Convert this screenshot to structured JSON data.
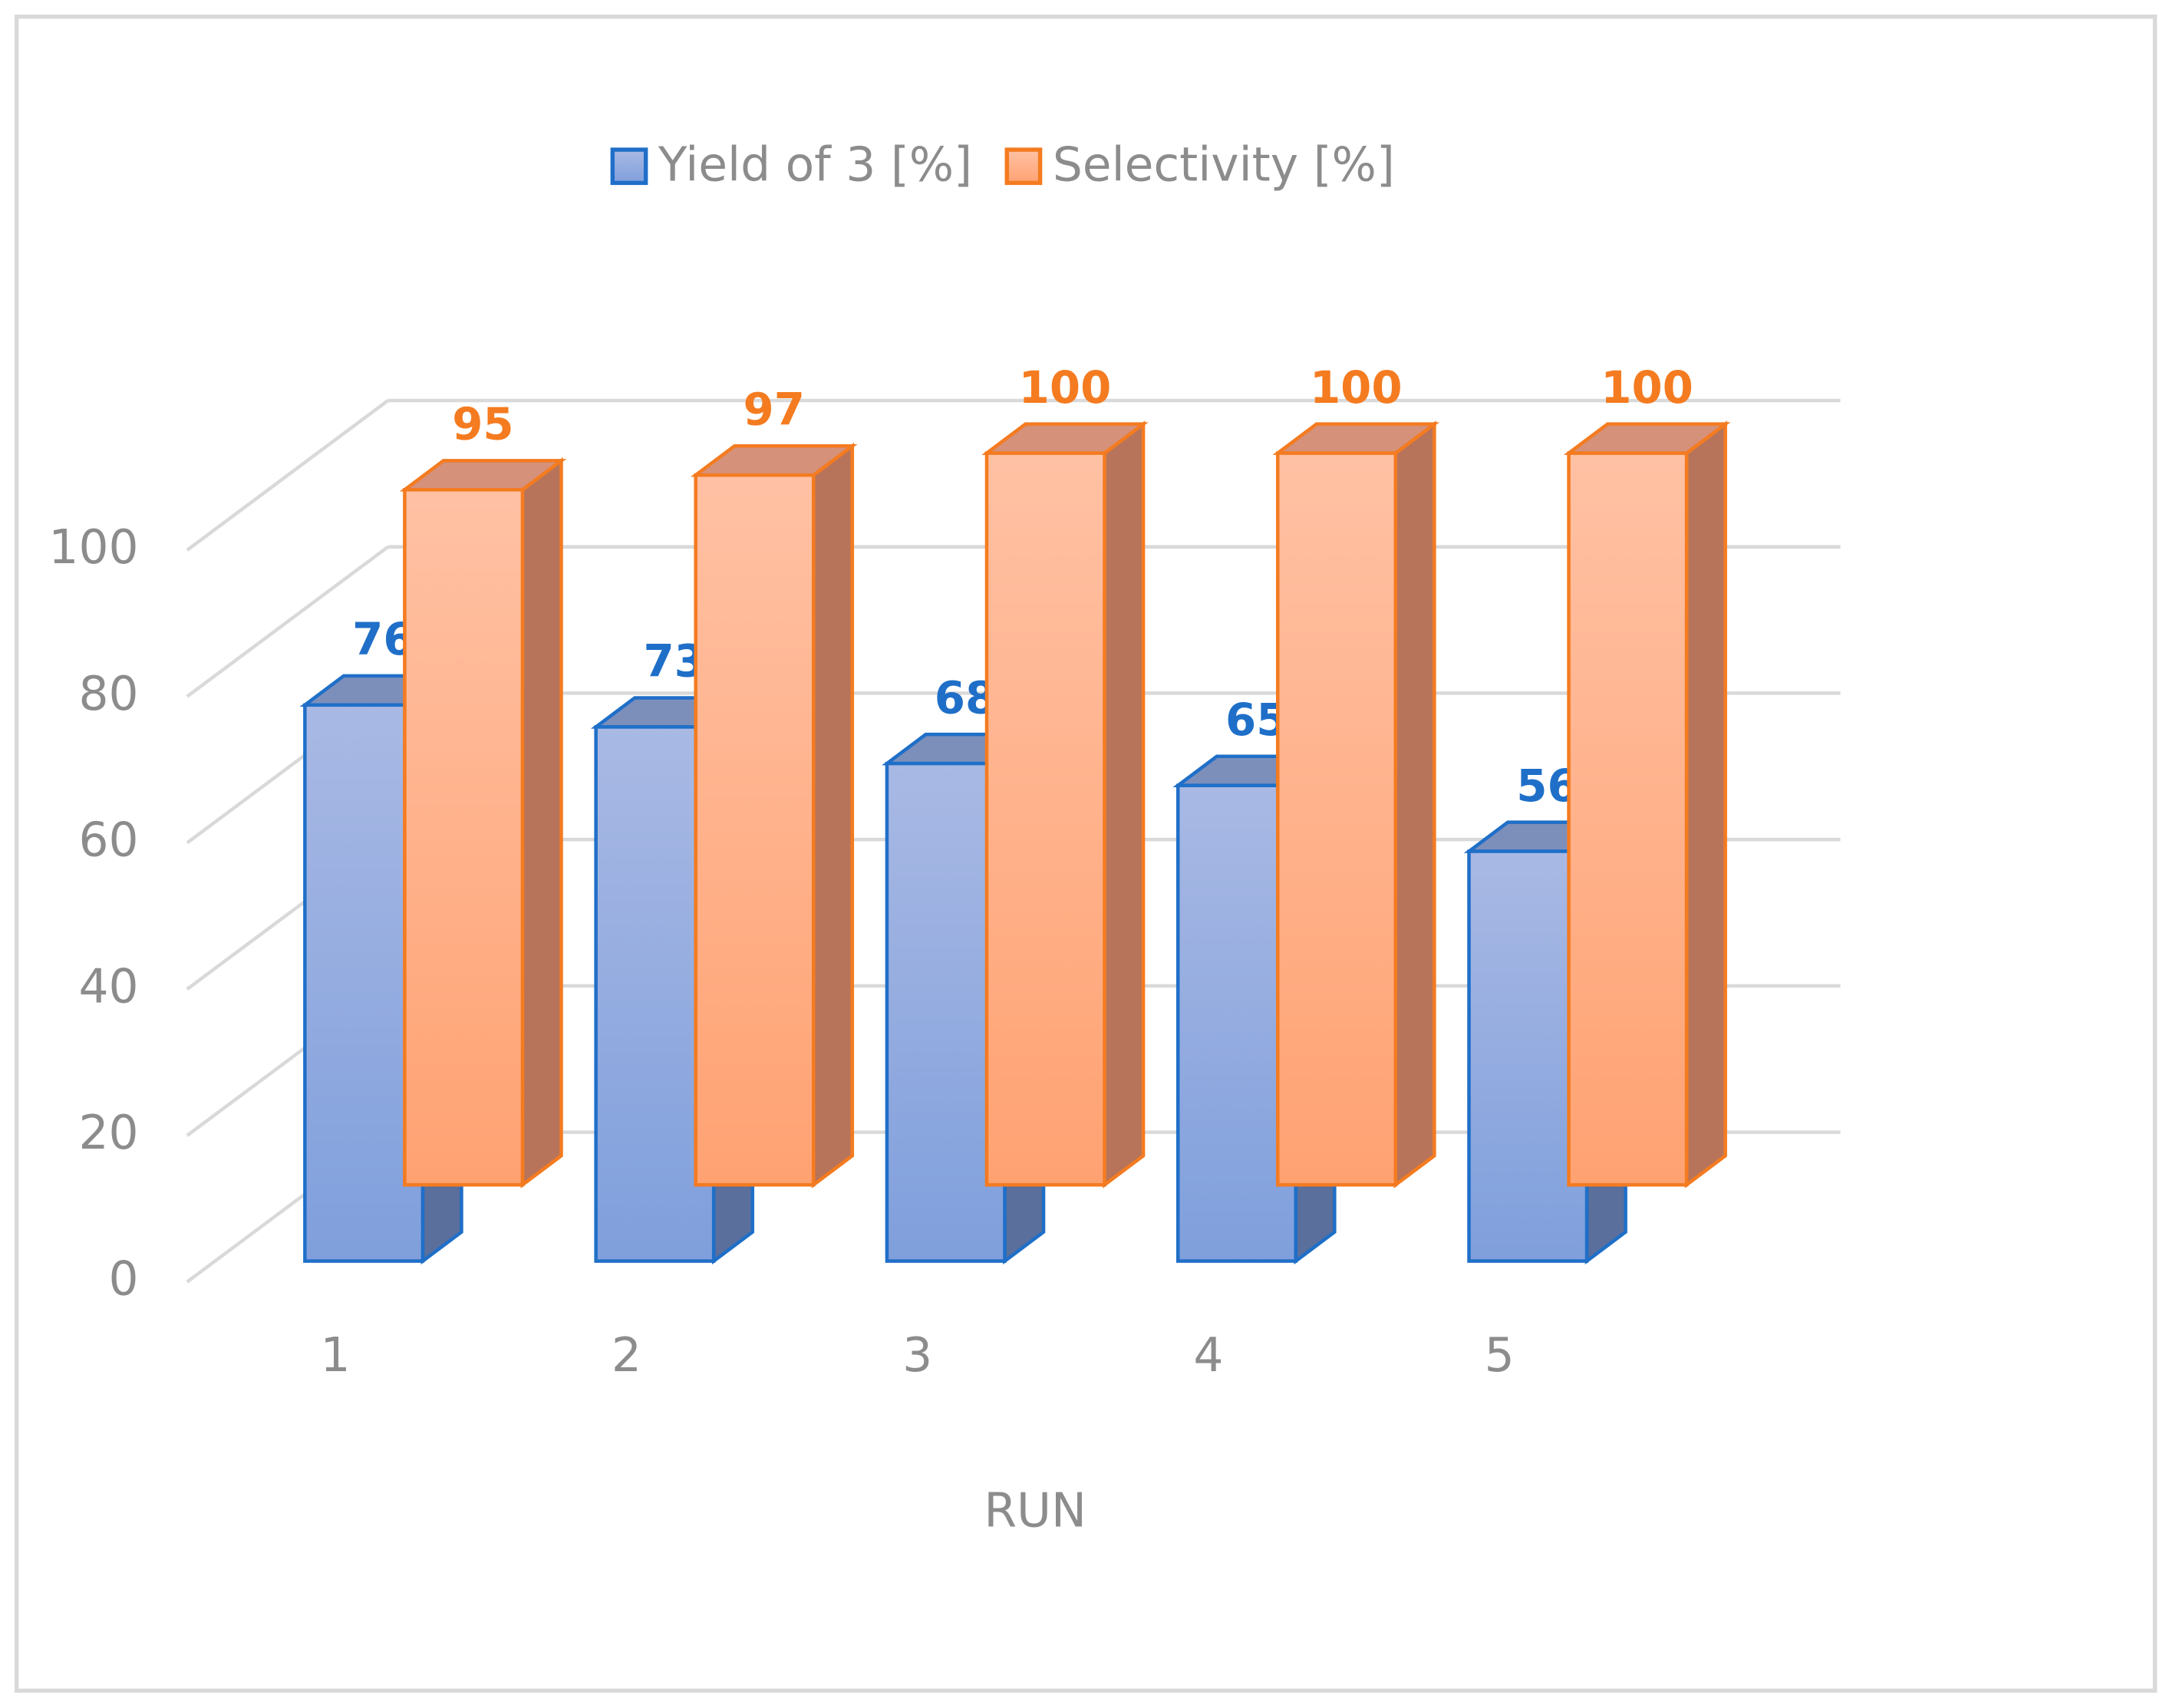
{
  "chart_data": {
    "type": "bar3d",
    "x_label": "RUN",
    "categories": [
      "1",
      "2",
      "3",
      "4",
      "5"
    ],
    "series": [
      {
        "name": "Yield of 3 [%]",
        "color": "#1f6fc8",
        "values": [
          76,
          73,
          68,
          65,
          56
        ]
      },
      {
        "name": "Selectivity [%]",
        "color": "#f47b20",
        "values": [
          95,
          97,
          100,
          100,
          100
        ]
      }
    ],
    "ylim": [
      0,
      100
    ],
    "yticks": [
      0,
      20,
      40,
      60,
      80,
      100
    ],
    "grid": true,
    "legend": "top"
  }
}
